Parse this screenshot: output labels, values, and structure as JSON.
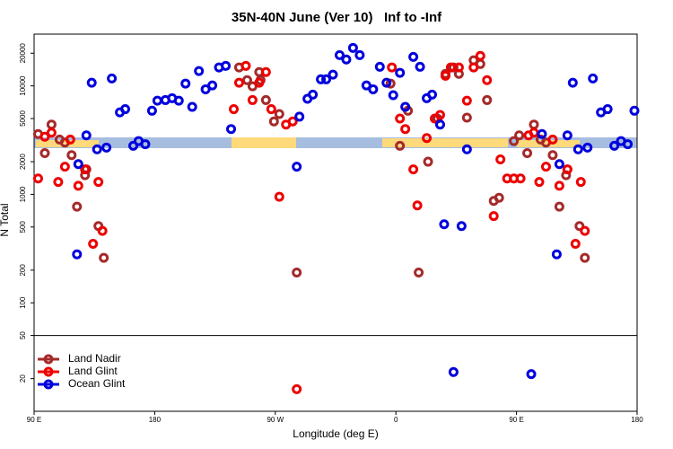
{
  "chart_data": {
    "type": "scatter",
    "title": "35N-40N June (Ver 10)   Inf to -Inf",
    "xlabel": "Longitude (deg E)",
    "ylabel": "N Total",
    "xlim": [
      90,
      540
    ],
    "xticks": [
      {
        "value": 90,
        "label": "90 E"
      },
      180,
      {
        "value": 270,
        "label": "90 W"
      },
      {
        "value": 360,
        "label": "0"
      },
      {
        "value": 450,
        "label": "90 E"
      },
      {
        "value": 540,
        "label": "180"
      }
    ],
    "ylim": [
      10,
      30000
    ],
    "log_y": true,
    "yticks": [
      20,
      50,
      100,
      200,
      500,
      1000,
      2000,
      5000,
      10000,
      20000
    ],
    "divider": 50,
    "legend": "lower left",
    "series": [
      {
        "name": "Land Nadir",
        "color": "#a52a2a",
        "x": [
          93,
          98,
          103,
          109,
          113,
          118,
          122,
          128,
          129,
          138,
          142,
          243,
          249,
          253,
          258,
          259,
          263,
          269,
          273,
          286,
          356,
          363,
          369,
          377,
          384,
          391,
          397,
          403,
          407,
          413,
          418,
          423,
          428,
          433,
          437,
          448,
          452,
          458,
          463,
          468,
          472,
          477,
          482,
          487,
          488,
          497,
          501
        ],
        "values": [
          3600,
          2400,
          4400,
          3200,
          3000,
          2300,
          770,
          1500,
          1700,
          510,
          260,
          14800,
          11300,
          9900,
          13400,
          11300,
          7400,
          4700,
          5500,
          190,
          10500,
          2800,
          5900,
          190,
          2000,
          5000,
          12900,
          14800,
          12900,
          5100,
          17200,
          15900,
          7400,
          870,
          930,
          3100,
          3500,
          2400,
          4400,
          3200,
          3000,
          2300,
          770,
          1500,
          1700,
          510,
          260
        ]
      },
      {
        "name": "Land Glint",
        "color": "#ee0000",
        "x": [
          93,
          98,
          103,
          108,
          113,
          117,
          123,
          128,
          134,
          138,
          141,
          239,
          243,
          248,
          253,
          258,
          263,
          267,
          273,
          278,
          283,
          286,
          357,
          363,
          367,
          373,
          376,
          383,
          389,
          393,
          397,
          401,
          407,
          413,
          418,
          423,
          428,
          433,
          438,
          443,
          448,
          453,
          459,
          463,
          467,
          472,
          477,
          482,
          488,
          494,
          498,
          501
        ],
        "values": [
          1400,
          3400,
          3700,
          1300,
          1800,
          3200,
          1200,
          1700,
          350,
          1300,
          460,
          6100,
          10700,
          15300,
          7400,
          10700,
          13400,
          6100,
          950,
          4400,
          4700,
          16,
          14800,
          5000,
          4000,
          1700,
          790,
          3300,
          5000,
          5400,
          12400,
          14800,
          14800,
          7300,
          14800,
          18900,
          11300,
          630,
          2100,
          1400,
          1400,
          1400,
          3500,
          3700,
          1300,
          1800,
          3200,
          1200,
          1700,
          350,
          1300,
          460
        ]
      },
      {
        "name": "Ocean Glint",
        "color": "#0000dd",
        "x": [
          122,
          123,
          129,
          133,
          137,
          144,
          148,
          154,
          158,
          164,
          168,
          173,
          178,
          182,
          188,
          193,
          198,
          203,
          208,
          213,
          218,
          223,
          228,
          233,
          237,
          286,
          288,
          294,
          298,
          304,
          308,
          313,
          318,
          323,
          328,
          333,
          338,
          343,
          348,
          353,
          358,
          363,
          367,
          373,
          378,
          383,
          387,
          393,
          396,
          403,
          409,
          413,
          461,
          469,
          480,
          482,
          488,
          492,
          496,
          503,
          507,
          513,
          518,
          523,
          528,
          533,
          538
        ],
        "values": [
          280,
          1900,
          3500,
          10700,
          2600,
          2700,
          11700,
          5700,
          6100,
          2800,
          3100,
          2900,
          5900,
          7300,
          7400,
          7700,
          7300,
          10500,
          6400,
          13700,
          9300,
          10100,
          14800,
          15300,
          4000,
          1800,
          5200,
          7600,
          8300,
          11500,
          11500,
          12700,
          19200,
          17500,
          22400,
          19200,
          10100,
          9300,
          15000,
          10700,
          8200,
          13200,
          6400,
          18500,
          15000,
          7700,
          8300,
          4400,
          530,
          23,
          510,
          2600,
          22,
          3600,
          280,
          1900,
          3500,
          10700,
          2600,
          2700,
          11700,
          5700,
          6100,
          2800,
          3100,
          2900,
          5900
        ]
      }
    ]
  }
}
